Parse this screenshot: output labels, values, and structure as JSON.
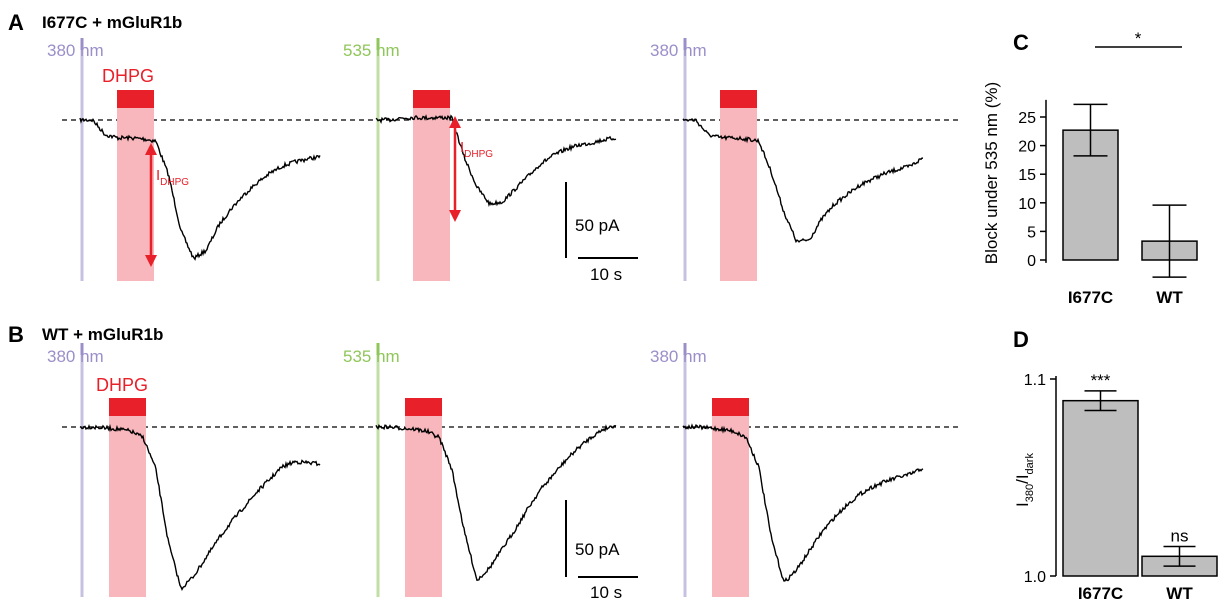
{
  "colors": {
    "uv": "#9b8fc9",
    "green": "#8fc65a",
    "red": "#e8202a",
    "pink": "#f7b7bc",
    "bar": "#bebebe",
    "trace": "#000000"
  },
  "panels": {
    "A": {
      "letter": "A",
      "title": "I677C + mGluR1b"
    },
    "B": {
      "letter": "B",
      "title": "WT + mGluR1b"
    },
    "C": {
      "letter": "C"
    },
    "D": {
      "letter": "D"
    }
  },
  "labels": {
    "nm380": "380 nm",
    "nm535": "535 nm",
    "dhpg": "DHPG",
    "idhpg_main": "I",
    "idhpg_sub": "DHPG"
  },
  "scalebars": {
    "A": {
      "current": "50 pA",
      "time": "10 s"
    },
    "B": {
      "current": "50 pA",
      "time": "10 s"
    }
  },
  "chart_data": [
    {
      "panel": "A",
      "type": "line",
      "title": "I677C + mGluR1b",
      "xlabel": "",
      "ylabel": "",
      "sweeps": [
        {
          "light": "380 nm",
          "y": [
            0.0,
            0.0,
            -0.7,
            -0.85,
            -0.85,
            -0.9,
            -1.0,
            -2.6,
            -5.3,
            -6.6,
            -6.2,
            -5.0,
            -4.2,
            -3.55,
            -3.0,
            -2.55,
            -2.2,
            -2.0,
            -1.85,
            -1.75
          ]
        },
        {
          "light": "535 nm",
          "y": [
            0.0,
            0.0,
            0.1,
            0.12,
            0.1,
            0.12,
            0.1,
            -1.8,
            -3.2,
            -4.0,
            -3.9,
            -3.3,
            -2.7,
            -2.1,
            -1.7,
            -1.4,
            -1.2,
            -1.1,
            -0.95,
            -0.85
          ]
        },
        {
          "light": "380 nm",
          "y": [
            0.0,
            0.0,
            -0.7,
            -0.85,
            -0.85,
            -0.9,
            -1.0,
            -2.5,
            -4.4,
            -5.8,
            -5.7,
            -4.7,
            -4.0,
            -3.55,
            -3.1,
            -2.8,
            -2.55,
            -2.35,
            -2.2,
            -1.8
          ]
        }
      ]
    },
    {
      "panel": "B",
      "type": "line",
      "title": "WT + mGluR1b",
      "xlabel": "",
      "ylabel": "",
      "sweeps": [
        {
          "light": "380 nm",
          "y": [
            0.0,
            0.0,
            -0.05,
            -0.1,
            -0.2,
            -0.5,
            -2.0,
            -5.5,
            -7.7,
            -7.1,
            -6.2,
            -5.3,
            -4.5,
            -3.8,
            -3.1,
            -2.5,
            -1.9,
            -1.65,
            -1.7,
            -1.75
          ]
        },
        {
          "light": "535 nm",
          "y": [
            0.0,
            0.0,
            -0.05,
            -0.1,
            -0.2,
            -0.5,
            -2.0,
            -5.0,
            -7.3,
            -6.7,
            -5.8,
            -4.9,
            -3.9,
            -3.0,
            -2.3,
            -1.6,
            -1.0,
            -0.5,
            -0.1,
            0.1
          ]
        },
        {
          "light": "380 nm",
          "y": [
            0.0,
            0.0,
            -0.05,
            -0.1,
            -0.2,
            -0.5,
            -1.9,
            -5.3,
            -7.4,
            -6.8,
            -5.9,
            -5.0,
            -4.3,
            -3.7,
            -3.2,
            -2.85,
            -2.6,
            -2.4,
            -2.25,
            -1.95
          ]
        }
      ]
    },
    {
      "panel": "C",
      "type": "bar",
      "categories": [
        "I677C",
        "WT"
      ],
      "values": [
        22.7,
        3.3
      ],
      "error": [
        4.5,
        6.3
      ],
      "ylabel": "Block under 535 nm (%)",
      "ylim": [
        -3,
        28
      ],
      "yticks": [
        "0",
        "5",
        "10",
        "15",
        "20",
        "25"
      ],
      "significance": "*"
    },
    {
      "panel": "D",
      "type": "bar",
      "categories": [
        "I677C",
        "WT"
      ],
      "values": [
        1.089,
        1.01
      ],
      "error": [
        0.005,
        0.005
      ],
      "ylabel_main": "I",
      "ylabel_sub1": "380",
      "ylabel_sep": "/I",
      "ylabel_sub2": "dark",
      "ylim": [
        1.0,
        1.1
      ],
      "yticks": [
        "1.0",
        "1.1"
      ],
      "significance": [
        "***",
        "ns"
      ]
    }
  ]
}
